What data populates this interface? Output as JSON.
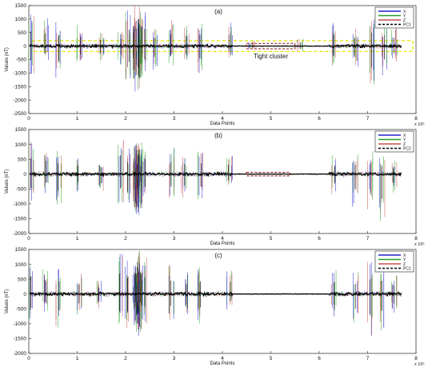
{
  "chart_data": [
    {
      "type": "line",
      "panel_label": "(a)",
      "xlabel": "Data Points",
      "ylabel": "Values (nT)",
      "x_multiplier": "x 10⁵",
      "xlim": [
        0,
        8
      ],
      "ylim": [
        -2500,
        1500
      ],
      "xticks": [
        "0",
        "1",
        "2",
        "3",
        "4",
        "5",
        "6",
        "7",
        "8"
      ],
      "yticks": [
        "1500",
        "1000",
        "500",
        "0",
        "-500",
        "-1000",
        "-1500",
        "-2000",
        "-2500"
      ],
      "series": [
        {
          "name": "X",
          "color": "#1f1fd0"
        },
        {
          "name": "Y",
          "color": "#2aa02a"
        },
        {
          "name": "Z",
          "color": "#c0504d"
        },
        {
          "name": "PC1",
          "color": "#000000",
          "dashed": true
        }
      ],
      "legend_position": "top-right",
      "annotation": {
        "text": "Tight cluster",
        "x_range": [
          4.5,
          5.5
        ],
        "y_range": [
          -100,
          100
        ]
      },
      "band": {
        "y_range": [
          -200,
          200
        ],
        "x_range": [
          0,
          8
        ]
      },
      "spikes": [
        {
          "x": 0.05,
          "h": 1200,
          "l": -1100
        },
        {
          "x": 0.35,
          "h": 1050,
          "l": -600
        },
        {
          "x": 0.62,
          "h": 900,
          "l": -1200
        },
        {
          "x": 1.05,
          "h": 800,
          "l": -700
        },
        {
          "x": 1.5,
          "h": 500,
          "l": -600
        },
        {
          "x": 1.9,
          "h": 600,
          "l": -700
        },
        {
          "x": 2.05,
          "h": 1350,
          "l": -1300
        },
        {
          "x": 2.25,
          "h": 1500,
          "l": -1750
        },
        {
          "x": 2.4,
          "h": 1400,
          "l": -1100
        },
        {
          "x": 2.6,
          "h": 700,
          "l": -900
        },
        {
          "x": 2.95,
          "h": 1000,
          "l": -800
        },
        {
          "x": 3.25,
          "h": 850,
          "l": -700
        },
        {
          "x": 3.55,
          "h": 950,
          "l": -1000
        },
        {
          "x": 4.15,
          "h": 950,
          "l": -500
        },
        {
          "x": 4.6,
          "h": 200,
          "l": -150
        },
        {
          "x": 5.6,
          "h": 300,
          "l": -250
        },
        {
          "x": 6.3,
          "h": 900,
          "l": -800
        },
        {
          "x": 6.75,
          "h": 650,
          "l": -900
        },
        {
          "x": 7.1,
          "h": 1100,
          "l": -1750
        },
        {
          "x": 7.35,
          "h": 900,
          "l": -1100
        },
        {
          "x": 7.55,
          "h": 700,
          "l": -600
        }
      ]
    },
    {
      "type": "line",
      "panel_label": "(b)",
      "xlabel": "Data Points",
      "ylabel": "Values (nT)",
      "x_multiplier": "x 10⁵",
      "xlim": [
        0,
        8
      ],
      "ylim": [
        -2000,
        1500
      ],
      "xticks": [
        "0",
        "1",
        "2",
        "3",
        "4",
        "5",
        "6",
        "7",
        "8"
      ],
      "yticks": [
        "1500",
        "1000",
        "500",
        "0",
        "-500",
        "-1000",
        "-1500",
        "-2000"
      ],
      "series": [
        {
          "name": "X",
          "color": "#1f1fd0"
        },
        {
          "name": "Y",
          "color": "#2aa02a"
        },
        {
          "name": "Z",
          "color": "#c0504d"
        },
        {
          "name": "PC2",
          "color": "#000000",
          "dashed": true
        }
      ],
      "legend_position": "top-right",
      "annotation": {
        "text": "",
        "x_range": [
          4.5,
          5.4
        ],
        "y_range": [
          -60,
          60
        ]
      },
      "spikes": [
        {
          "x": 0.05,
          "h": 1150,
          "l": -1050
        },
        {
          "x": 0.35,
          "h": 1000,
          "l": -650
        },
        {
          "x": 0.62,
          "h": 800,
          "l": -1250
        },
        {
          "x": 1.0,
          "h": 600,
          "l": -600
        },
        {
          "x": 1.5,
          "h": 500,
          "l": -700
        },
        {
          "x": 1.9,
          "h": 1400,
          "l": -1100
        },
        {
          "x": 2.05,
          "h": 900,
          "l": -1350
        },
        {
          "x": 2.25,
          "h": 1350,
          "l": -1500
        },
        {
          "x": 2.4,
          "h": 1100,
          "l": -950
        },
        {
          "x": 2.95,
          "h": 900,
          "l": -900
        },
        {
          "x": 3.2,
          "h": 750,
          "l": -850
        },
        {
          "x": 3.55,
          "h": 800,
          "l": -950
        },
        {
          "x": 4.15,
          "h": 700,
          "l": -450
        },
        {
          "x": 6.3,
          "h": 650,
          "l": -700
        },
        {
          "x": 6.75,
          "h": 700,
          "l": -1100
        },
        {
          "x": 7.05,
          "h": 850,
          "l": -1400
        },
        {
          "x": 7.3,
          "h": 650,
          "l": -1850
        },
        {
          "x": 7.55,
          "h": 500,
          "l": -650
        }
      ]
    },
    {
      "type": "line",
      "panel_label": "(c)",
      "xlabel": "Data Points",
      "ylabel": "Values (nT)",
      "x_multiplier": "x 10⁵",
      "xlim": [
        0,
        8
      ],
      "ylim": [
        -2000,
        1500
      ],
      "xticks": [
        "0",
        "1",
        "2",
        "3",
        "4",
        "5",
        "6",
        "7",
        "8"
      ],
      "yticks": [
        "1500",
        "1000",
        "500",
        "0",
        "-500",
        "-1000",
        "-1500",
        "-2000"
      ],
      "series": [
        {
          "name": "X",
          "color": "#1f1fd0"
        },
        {
          "name": "Y",
          "color": "#2aa02a"
        },
        {
          "name": "Z",
          "color": "#c0504d"
        },
        {
          "name": "PC1",
          "color": "#000000",
          "dashed": true
        }
      ],
      "legend_position": "top-right",
      "spikes": [
        {
          "x": 0.05,
          "h": 1300,
          "l": -1050
        },
        {
          "x": 0.35,
          "h": 1050,
          "l": -600
        },
        {
          "x": 0.62,
          "h": 950,
          "l": -1250
        },
        {
          "x": 1.05,
          "h": 700,
          "l": -700
        },
        {
          "x": 1.45,
          "h": 550,
          "l": -600
        },
        {
          "x": 1.9,
          "h": 1500,
          "l": -1300
        },
        {
          "x": 2.05,
          "h": 1200,
          "l": -1400
        },
        {
          "x": 2.25,
          "h": 1500,
          "l": -1600
        },
        {
          "x": 2.4,
          "h": 1250,
          "l": -1000
        },
        {
          "x": 2.95,
          "h": 1000,
          "l": -900
        },
        {
          "x": 3.25,
          "h": 800,
          "l": -800
        },
        {
          "x": 3.55,
          "h": 950,
          "l": -1000
        },
        {
          "x": 4.15,
          "h": 900,
          "l": -550
        },
        {
          "x": 6.3,
          "h": 900,
          "l": -800
        },
        {
          "x": 6.75,
          "h": 750,
          "l": -1100
        },
        {
          "x": 7.05,
          "h": 1100,
          "l": -1500
        },
        {
          "x": 7.3,
          "h": 1000,
          "l": -1250
        },
        {
          "x": 7.55,
          "h": 650,
          "l": -700
        }
      ]
    }
  ]
}
